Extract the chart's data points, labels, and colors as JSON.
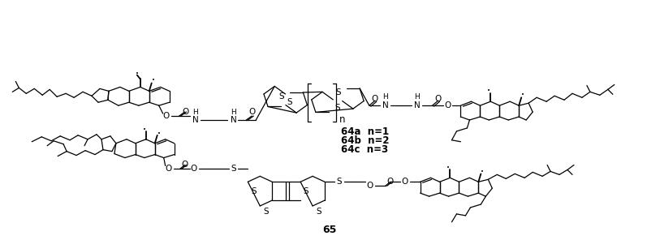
{
  "background_color": "#ffffff",
  "figsize": [
    8.13,
    2.96
  ],
  "dpi": 100,
  "label_64a": "64a  n=1",
  "label_64b": "64b  n=2",
  "label_64c": "64c  n=3",
  "label_65": "65",
  "lw": 0.9
}
